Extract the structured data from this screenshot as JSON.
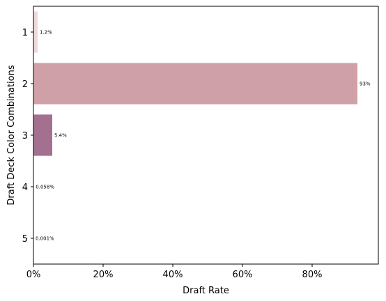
{
  "chart_data": {
    "type": "bar",
    "orientation": "horizontal",
    "categories": [
      "1",
      "2",
      "3",
      "4",
      "5"
    ],
    "values": [
      1.2,
      93,
      5.4,
      0.058,
      0.001
    ],
    "data_labels": [
      "1.2%",
      "93%",
      "5.4%",
      "0.058%",
      "0.001%"
    ],
    "colors": [
      "#efd9d8",
      "#cfa0a8",
      "#a4708f",
      "#6a4679",
      "#2d1e3e"
    ],
    "xlabel": "Draft Rate",
    "ylabel": "Draft Deck Color Combinations",
    "xlim": [
      0,
      100
    ],
    "xticks": [
      0,
      20,
      40,
      60,
      80
    ],
    "xtick_labels": [
      "0%",
      "20%",
      "40%",
      "60%",
      "80%"
    ],
    "grid": false
  }
}
